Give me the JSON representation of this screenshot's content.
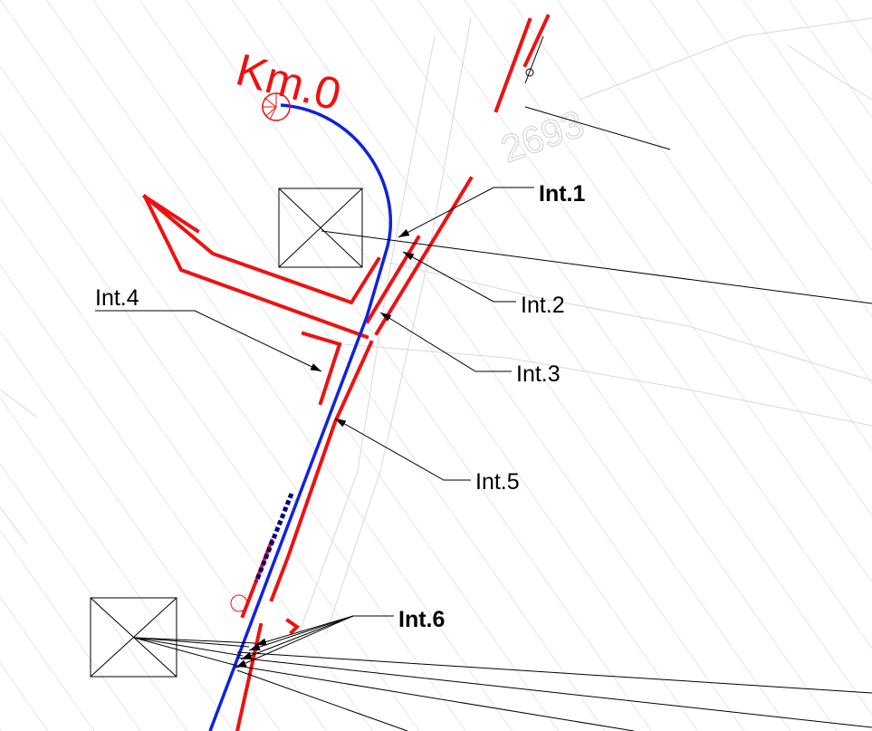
{
  "km_label": "Km.0",
  "annotations": [
    "Int.1",
    "Int.2",
    "Int.3",
    "Int.4",
    "Int.5",
    "Int.6"
  ],
  "background_text": "2693"
}
